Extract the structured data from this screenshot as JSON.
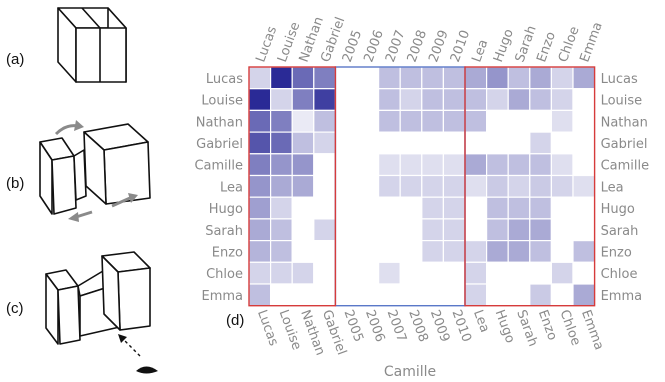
{
  "panel_labels": {
    "a": "(a)",
    "b": "(b)",
    "c": "(c)",
    "d": "(d)"
  },
  "axis_title_bottom": "Camille",
  "rows": [
    "Lucas",
    "Louise",
    "Nathan",
    "Gabriel",
    "Camille",
    "Lea",
    "Hugo",
    "Sarah",
    "Enzo",
    "Chloe",
    "Emma"
  ],
  "columns": [
    "Lucas",
    "Louise",
    "Nathan",
    "Gabriel",
    "2005",
    "2006",
    "2007",
    "2008",
    "2009",
    "2010",
    "Lea",
    "Hugo",
    "Sarah",
    "Enzo",
    "Chloe",
    "Emma"
  ],
  "matrix": [
    [
      0.2,
      1.0,
      0.7,
      0.6,
      0,
      0,
      0.3,
      0.3,
      0.3,
      0.3,
      0.4,
      0.5,
      0.3,
      0.4,
      0.2,
      0.4
    ],
    [
      1.0,
      0.2,
      0.6,
      0.9,
      0,
      0,
      0.3,
      0.2,
      0.3,
      0.3,
      0.3,
      0.2,
      0.4,
      0.3,
      0.2,
      0
    ],
    [
      0.7,
      0.6,
      0.1,
      0.3,
      0,
      0,
      0.3,
      0.3,
      0.3,
      0.3,
      0.3,
      0,
      0,
      0,
      0.15,
      0
    ],
    [
      0.8,
      0.7,
      0.3,
      0.2,
      0,
      0,
      0,
      0,
      0,
      0,
      0,
      0,
      0,
      0.2,
      0,
      0
    ],
    [
      0.6,
      0.5,
      0.5,
      0,
      0,
      0,
      0.15,
      0.15,
      0.15,
      0.15,
      0.4,
      0.3,
      0.3,
      0.3,
      0.15,
      0
    ],
    [
      0.5,
      0.4,
      0.4,
      0,
      0,
      0,
      0.2,
      0.2,
      0.2,
      0.2,
      0.15,
      0.25,
      0.2,
      0.25,
      0.2,
      0.15
    ],
    [
      0.45,
      0.2,
      0,
      0,
      0,
      0,
      0,
      0,
      0.2,
      0.2,
      0,
      0.3,
      0.3,
      0.3,
      0,
      0
    ],
    [
      0.4,
      0.3,
      0,
      0.2,
      0,
      0,
      0,
      0,
      0.2,
      0.2,
      0,
      0.3,
      0.4,
      0.4,
      0,
      0
    ],
    [
      0.35,
      0.3,
      0,
      0,
      0,
      0,
      0,
      0,
      0.2,
      0.2,
      0.2,
      0.4,
      0.4,
      0.3,
      0,
      0.3
    ],
    [
      0.2,
      0.2,
      0.2,
      0,
      0,
      0,
      0.15,
      0,
      0,
      0,
      0.2,
      0,
      0,
      0,
      0.2,
      0
    ],
    [
      0.3,
      0,
      0,
      0,
      0,
      0,
      0,
      0,
      0,
      0,
      0.2,
      0,
      0,
      0.25,
      0,
      0.4
    ]
  ],
  "colors": {
    "cell_max": "#2a2a96",
    "frame_red": "#d63b3b",
    "frame_blue": "#5a78c8",
    "grid": "#ffffff",
    "label": "#8a8a8a"
  }
}
